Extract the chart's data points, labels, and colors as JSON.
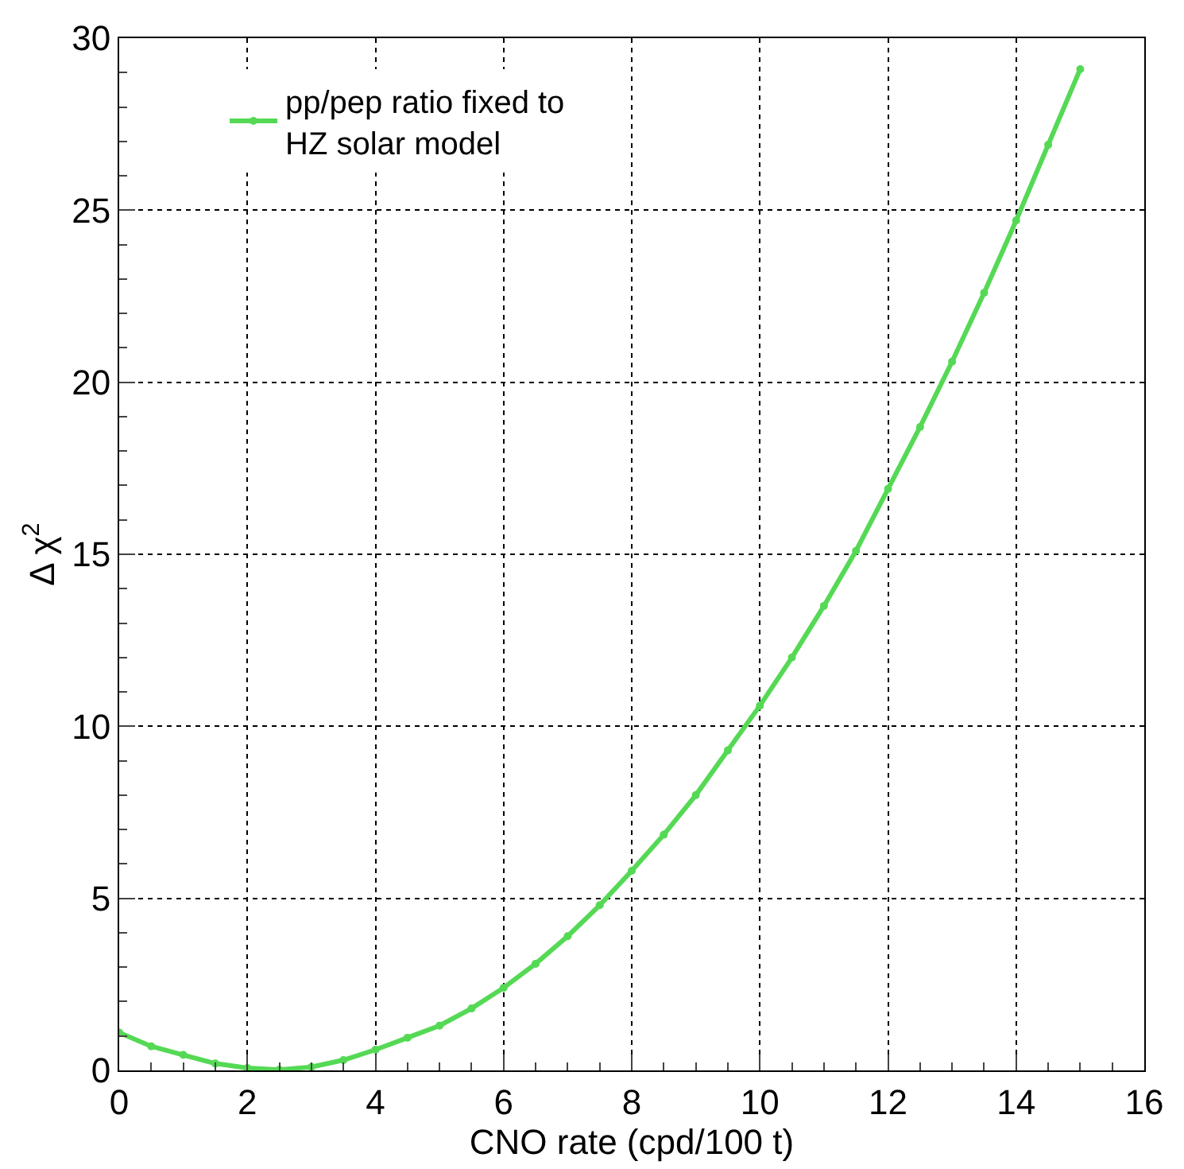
{
  "chart_data": {
    "type": "line",
    "xlabel": "CNO rate (cpd/100 t)",
    "ylabel": "Δ χ$^{2}$",
    "x": [
      0,
      0.5,
      1,
      1.5,
      2,
      2.5,
      3,
      3.5,
      4,
      4.5,
      5,
      5.5,
      6,
      6.5,
      7,
      7.5,
      8,
      8.5,
      9,
      9.5,
      10,
      10.5,
      11,
      11.5,
      12,
      12.5,
      13,
      13.5,
      14,
      14.5,
      15
    ],
    "series": [
      {
        "name": "pp/pep ratio fixed to\nHZ solar model",
        "color": "#55d955",
        "values": [
          1.1,
          0.7,
          0.45,
          0.2,
          0.07,
          0.02,
          0.1,
          0.3,
          0.6,
          0.95,
          1.3,
          1.8,
          2.4,
          3.1,
          3.9,
          4.8,
          5.8,
          6.85,
          8.0,
          9.3,
          10.6,
          12.0,
          13.5,
          15.1,
          16.9,
          18.7,
          20.6,
          22.6,
          24.7,
          26.9,
          29.1
        ]
      }
    ],
    "xlim": [
      0,
      16
    ],
    "xticks": [
      0,
      2,
      4,
      6,
      8,
      10,
      12,
      14,
      16
    ],
    "ylim": [
      0,
      30
    ],
    "yticks": [
      0,
      5,
      10,
      15,
      20,
      25,
      30
    ],
    "grid": true,
    "legend": "top left",
    "marker": "circle",
    "line_style": "solid"
  }
}
